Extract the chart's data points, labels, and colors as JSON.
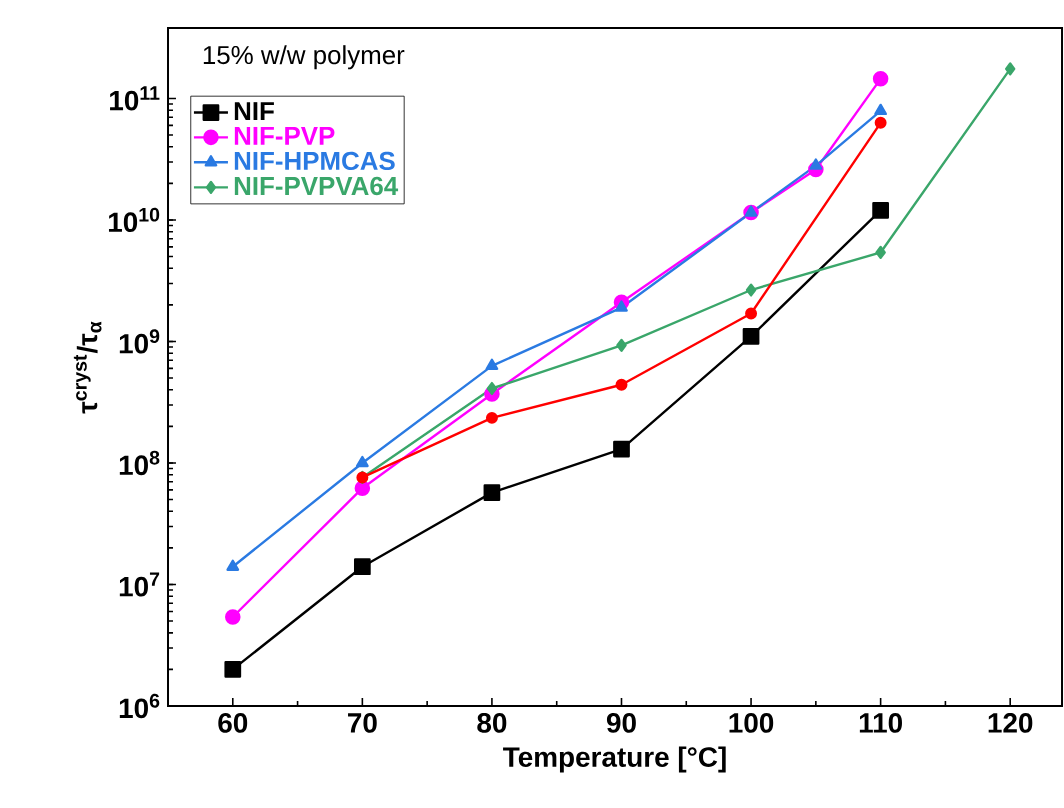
{
  "chart_data": {
    "type": "line",
    "xlabel": "Temperature [°C]",
    "ylabel": "τ$^{cryst}$/τ$_{α}$",
    "annotations": [
      "15% w/w polymer"
    ],
    "log": "y",
    "xlim": [
      55,
      124
    ],
    "xticks": [
      60,
      70,
      80,
      90,
      100,
      110,
      120
    ],
    "ylim": [
      1000000,
      380000000000
    ],
    "yticks": [
      {
        "value": 1000000,
        "label": "10$^{6}$"
      },
      {
        "value": 10000000,
        "label": "10$^{7}$"
      },
      {
        "value": 100000000,
        "label": "10$^{8}$"
      },
      {
        "value": 1000000000,
        "label": "10$^{9}$"
      },
      {
        "value": 10000000000,
        "label": "10$^{10}$"
      },
      {
        "value": 100000000000,
        "label": "10$^{11}$"
      }
    ],
    "grid": false,
    "legend": "top left",
    "line_style": "solid",
    "series": [
      {
        "name": "NIF",
        "color": "#000000",
        "marker": "square",
        "x": [
          60,
          70,
          80,
          90,
          100,
          110
        ],
        "values": [
          2000000,
          14000000,
          57000000,
          130000000,
          1100000000,
          12000000000
        ]
      },
      {
        "name": "NIF-PVP",
        "color": "#ff00ff",
        "marker": "circle",
        "x": [
          60,
          70,
          80,
          90,
          100,
          105,
          110
        ],
        "values": [
          5400000,
          62000000,
          370000000,
          2100000000,
          11500000000,
          26000000000,
          145000000000
        ]
      },
      {
        "name": "NIF-HPMCAS",
        "color": "#2a7ae2",
        "marker": "triangle",
        "x": [
          60,
          70,
          80,
          90,
          100,
          105,
          110
        ],
        "values": [
          14000000,
          100000000,
          630000000,
          1900000000,
          11500000000,
          28000000000,
          79000000000
        ]
      },
      {
        "name": "NIF-PVPVA64",
        "color": "#3aa66a",
        "marker": "diamond",
        "x": [
          70,
          80,
          90,
          100,
          110,
          120
        ],
        "values": [
          76000000,
          410000000,
          930000000,
          2650000000,
          5400000000,
          175000000000
        ]
      },
      {
        "color": "#ff0000",
        "marker": "circle",
        "x": [
          70,
          80,
          90,
          100,
          110
        ],
        "values": [
          76000000,
          235000000,
          440000000,
          1700000000,
          63000000000
        ]
      }
    ]
  }
}
